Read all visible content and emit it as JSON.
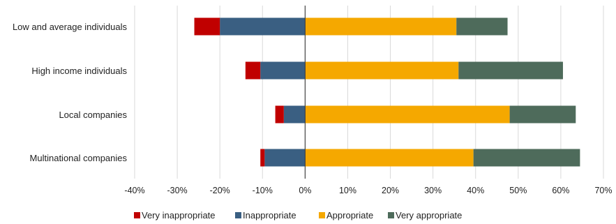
{
  "chart_data": {
    "type": "bar",
    "orientation": "horizontal",
    "stacked": "diverging",
    "categories": [
      "Low and average individuals",
      "High income individuals",
      "Local companies",
      "Multinational companies"
    ],
    "series": [
      {
        "name": "Very inappropriate",
        "color": "#c00000",
        "side": "negative",
        "values": [
          6,
          3.5,
          2,
          1
        ]
      },
      {
        "name": "Inappropriate",
        "color": "#3a5f82",
        "side": "negative",
        "values": [
          20,
          10.5,
          5,
          9.5
        ]
      },
      {
        "name": "Appropriate",
        "color": "#f5a800",
        "side": "positive",
        "values": [
          35.5,
          36,
          48,
          39.5
        ]
      },
      {
        "name": "Very appropriate",
        "color": "#4e6b5b",
        "side": "positive",
        "values": [
          12,
          24.5,
          15.5,
          25
        ]
      }
    ],
    "xlim": [
      -40,
      70
    ],
    "xticks": [
      -40,
      -30,
      -20,
      -10,
      0,
      10,
      20,
      30,
      40,
      50,
      60,
      70
    ],
    "tick_labels": [
      "-40%",
      "-30%",
      "-20%",
      "-10%",
      "0%",
      "10%",
      "20%",
      "30%",
      "40%",
      "50%",
      "60%",
      "70%"
    ],
    "grid": "vertical",
    "legend_position": "bottom"
  }
}
